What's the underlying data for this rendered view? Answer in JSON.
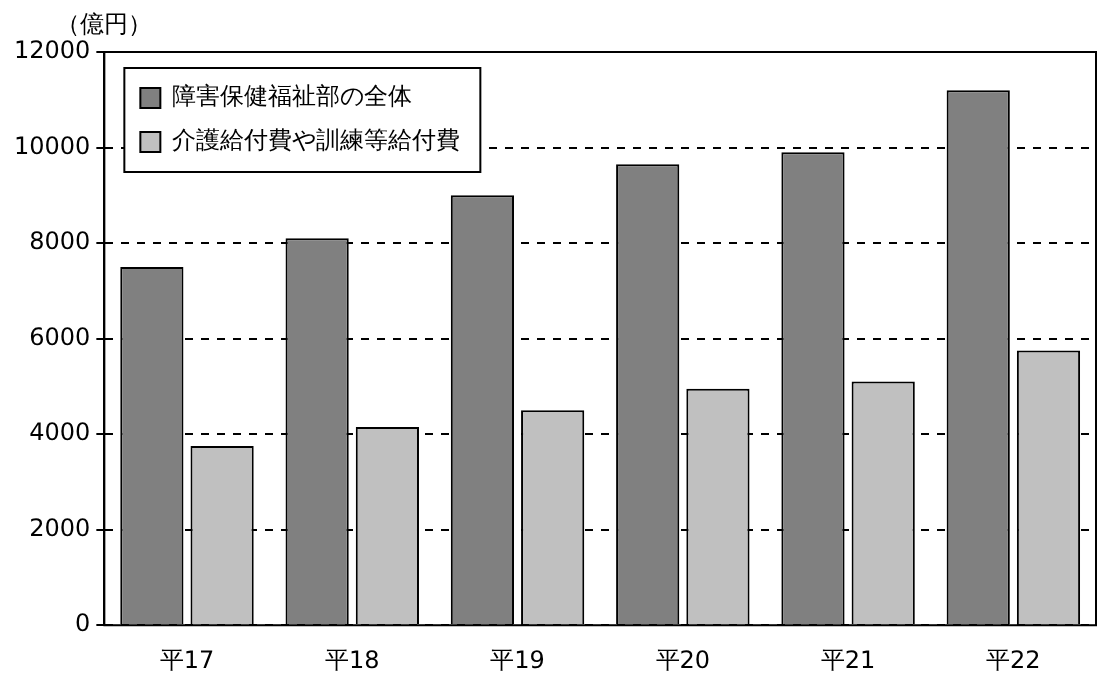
{
  "chart_data": {
    "type": "bar",
    "ylabel": "（億円）",
    "categories": [
      "平17",
      "平18",
      "平19",
      "平20",
      "平21",
      "平22"
    ],
    "series": [
      {
        "name": "障害保健福祉部の全体",
        "color": "#808080",
        "values": [
          7500,
          8100,
          9000,
          9650,
          9900,
          11200
        ]
      },
      {
        "name": "介護給付費や訓練等給付費",
        "color": "#c0c0c0",
        "values": [
          3750,
          4150,
          4500,
          4950,
          5100,
          5750
        ]
      }
    ],
    "ylim": [
      0,
      12000
    ],
    "yticks": [
      0,
      2000,
      4000,
      6000,
      8000,
      10000,
      12000
    ],
    "grid": "y",
    "legend": "top left"
  }
}
